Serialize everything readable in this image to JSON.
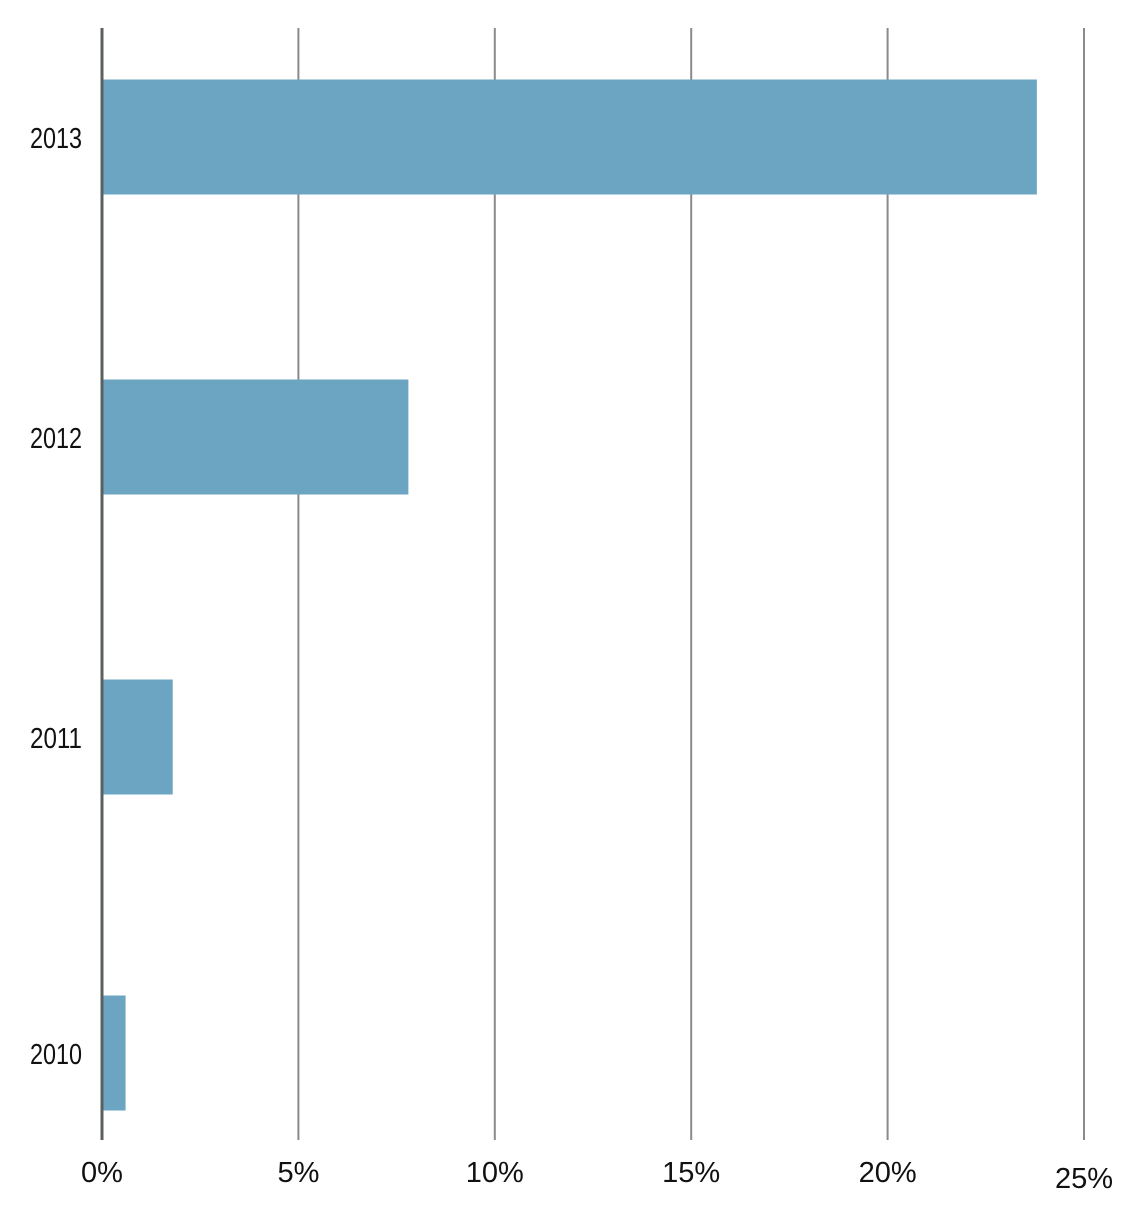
{
  "chart_data": {
    "type": "bar",
    "orientation": "horizontal",
    "categories": [
      "2013",
      "2012",
      "2011",
      "2010"
    ],
    "values": [
      23.8,
      7.8,
      1.8,
      0.6
    ],
    "value_unit": "percent",
    "xlim": [
      0,
      25
    ],
    "x_ticks": [
      0,
      5,
      10,
      15,
      20,
      25
    ],
    "x_tick_labels": [
      "0%",
      "5%",
      "10%",
      "15%",
      "20%",
      "25%"
    ],
    "title": "",
    "xlabel": "",
    "ylabel": "",
    "grid": "vertical",
    "legend": "none"
  },
  "colors": {
    "bar": "#6ba5c2",
    "gridline": "#8a8a8a",
    "axis": "#5a6060",
    "text": "#111111"
  }
}
